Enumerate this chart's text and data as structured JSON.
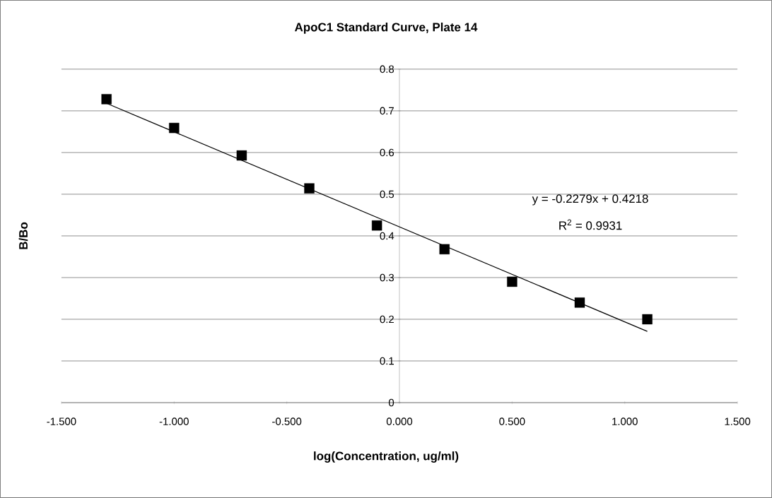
{
  "chart_data": {
    "type": "scatter",
    "title": "ApoC1 Standard Curve, Plate 14",
    "xlabel": "log(Concentration, ug/ml)",
    "ylabel": "B/Bo",
    "xlim": [
      -1.5,
      1.5
    ],
    "xticks": [
      {
        "value": -1.5,
        "label": "-1.500"
      },
      {
        "value": -1.0,
        "label": "-1.000"
      },
      {
        "value": -0.5,
        "label": "-0.500"
      },
      {
        "value": 0,
        "label": "0.000"
      },
      {
        "value": 0.5,
        "label": "0.500"
      },
      {
        "value": 1.0,
        "label": "1.000"
      },
      {
        "value": 1.5,
        "label": "1.500"
      }
    ],
    "ylim": [
      0,
      0.8
    ],
    "yticks": [
      0,
      0.1,
      0.2,
      0.3,
      0.4,
      0.5,
      0.6,
      0.7,
      0.8
    ],
    "grid": "y",
    "legend": false,
    "series": [
      {
        "color": "#000000",
        "marker": "square",
        "x": [
          -1.3,
          -1.0,
          -0.7,
          -0.4,
          -0.1,
          0.2,
          0.5,
          0.8,
          1.1
        ],
        "values": [
          0.728,
          0.659,
          0.593,
          0.514,
          0.425,
          0.368,
          0.29,
          0.24,
          0.2
        ]
      },
      {
        "type": "line",
        "color": "#000000",
        "marker": "none",
        "x": [
          -1.3,
          1.1
        ],
        "values": [
          0.718,
          0.171
        ]
      }
    ],
    "annotations": [
      "y = -0.2279x + 0.4218",
      "R$^{2}$ = 0.9931"
    ]
  }
}
